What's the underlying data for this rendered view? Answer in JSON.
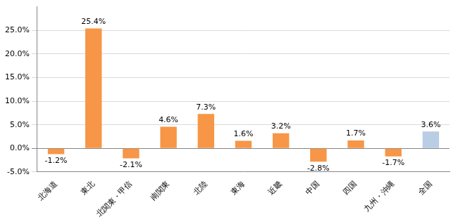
{
  "chart_data": {
    "type": "bar",
    "categories": [
      "北海道",
      "東北",
      "北関東・甲信",
      "南関東",
      "北陸",
      "東海",
      "近畿",
      "中国",
      "四国",
      "九州・沖縄",
      "全国"
    ],
    "values": [
      -1.2,
      25.4,
      -2.1,
      4.6,
      7.3,
      1.6,
      3.2,
      -2.8,
      1.7,
      -1.7,
      3.6
    ],
    "value_labels": [
      "-1.2%",
      "25.4%",
      "-2.1%",
      "4.6%",
      "7.3%",
      "1.6%",
      "3.2%",
      "-2.8%",
      "1.7%",
      "-1.7%",
      "3.6%"
    ],
    "colors": [
      "#f79646",
      "#f79646",
      "#f79646",
      "#f79646",
      "#f79646",
      "#f79646",
      "#f79646",
      "#f79646",
      "#f79646",
      "#f79646",
      "#b9cde5"
    ],
    "ylim": [
      -5,
      30
    ],
    "yticks": [
      {
        "value": -5,
        "label": "-5.0%"
      },
      {
        "value": 0,
        "label": "0.0%"
      },
      {
        "value": 5,
        "label": "5.0%"
      },
      {
        "value": 10,
        "label": "10.0%"
      },
      {
        "value": 15,
        "label": "15.0%"
      },
      {
        "value": 20,
        "label": "20.0%"
      },
      {
        "value": 25,
        "label": "25.0%"
      }
    ],
    "grid": true,
    "data_labels": true
  }
}
